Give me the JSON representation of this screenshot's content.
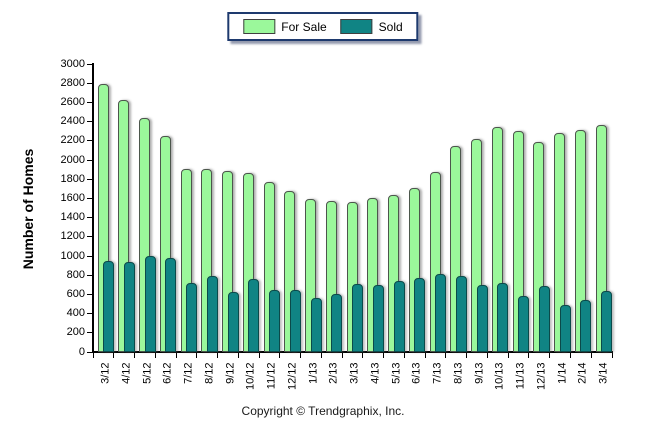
{
  "chart_data": {
    "type": "bar",
    "title": "",
    "xlabel": "",
    "ylabel": "Number of Homes",
    "ylim": [
      0,
      3000
    ],
    "ytick_step": 200,
    "grid": false,
    "legend_position": "top-center",
    "categories": [
      "3/12",
      "4/12",
      "5/12",
      "6/12",
      "7/12",
      "8/12",
      "9/12",
      "10/12",
      "11/12",
      "12/12",
      "1/13",
      "2/13",
      "3/13",
      "4/13",
      "5/13",
      "6/13",
      "7/13",
      "8/13",
      "9/13",
      "10/13",
      "11/13",
      "12/13",
      "1/14",
      "2/14",
      "3/14"
    ],
    "series": [
      {
        "name": "For Sale",
        "color": "#9bf89b",
        "values": [
          2790,
          2620,
          2440,
          2250,
          1910,
          1910,
          1890,
          1860,
          1770,
          1680,
          1590,
          1570,
          1560,
          1600,
          1640,
          1710,
          1870,
          2150,
          2220,
          2340,
          2300,
          2190,
          2280,
          2310,
          2360
        ]
      },
      {
        "name": "Sold",
        "color": "#108484",
        "values": [
          950,
          940,
          1000,
          980,
          720,
          790,
          620,
          760,
          650,
          650,
          560,
          600,
          710,
          700,
          740,
          770,
          810,
          790,
          700,
          720,
          580,
          690,
          490,
          540,
          640
        ]
      }
    ]
  },
  "footer": {
    "copyright": "Copyright © Trendgraphix, Inc."
  }
}
